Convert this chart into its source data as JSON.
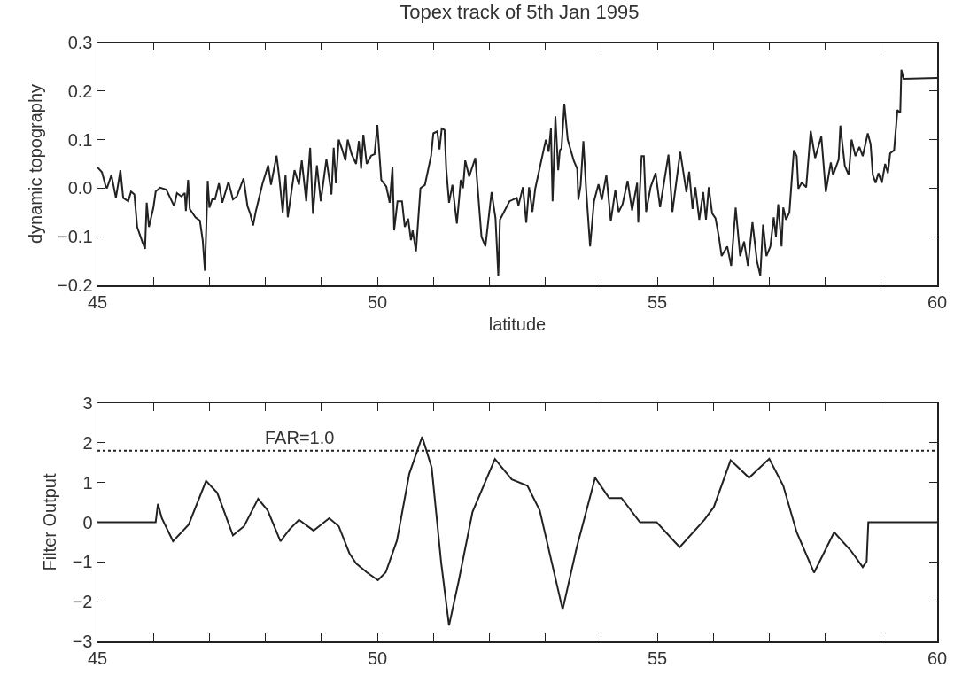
{
  "chart_data": [
    {
      "type": "line",
      "title": "Topex track of 5th Jan 1995",
      "xlabel": "latitude",
      "ylabel": "dynamic topography",
      "grid": false,
      "xlim": [
        45,
        60
      ],
      "xticks": [
        45,
        {
          "value": 46,
          "label": null
        },
        {
          "value": 47,
          "label": null
        },
        {
          "value": 48,
          "label": null
        },
        {
          "value": 49,
          "label": null
        },
        50,
        {
          "value": 51,
          "label": null
        },
        {
          "value": 52,
          "label": null
        },
        {
          "value": 53,
          "label": null
        },
        {
          "value": 54,
          "label": null
        },
        55,
        {
          "value": 56,
          "label": null
        },
        {
          "value": 57,
          "label": null
        },
        {
          "value": 58,
          "label": null
        },
        {
          "value": 59,
          "label": null
        },
        60
      ],
      "ylim": [
        -0.2,
        0.3
      ],
      "yticks": [
        {
          "value": -0.2,
          "label": "−0.2"
        },
        {
          "value": -0.1,
          "label": "−0.1"
        },
        {
          "value": 0,
          "label": "0.0"
        },
        0.1,
        0.2,
        0.3
      ],
      "series": [
        {
          "color": "#222222",
          "x": [
            45,
            45.08,
            45.15,
            45.17,
            45.25,
            45.33,
            45.41,
            45.46,
            45.55,
            45.6,
            45.66,
            45.71,
            45.8,
            45.85,
            45.88,
            45.92,
            46.0,
            46.04,
            46.12,
            46.23,
            46.37,
            46.42,
            46.5,
            46.56,
            46.58,
            46.62,
            46.65,
            46.75,
            46.83,
            46.88,
            46.92,
            46.97,
            47.0,
            47.05,
            47.1,
            47.17,
            47.23,
            47.34,
            47.42,
            47.49,
            47.61,
            47.68,
            47.73,
            47.78,
            47.83,
            47.95,
            48.05,
            48.1,
            48.2,
            48.25,
            48.31,
            48.36,
            48.4,
            48.52,
            48.6,
            48.65,
            48.73,
            48.8,
            48.85,
            48.92,
            48.99,
            49.09,
            49.18,
            49.22,
            49.26,
            49.31,
            49.37,
            49.43,
            49.47,
            49.54,
            49.62,
            49.67,
            49.71,
            49.75,
            49.81,
            49.89,
            49.95,
            50.0,
            50.07,
            50.16,
            50.22,
            50.27,
            50.3,
            50.36,
            50.44,
            50.49,
            50.55,
            50.6,
            50.63,
            50.69,
            50.77,
            50.85,
            50.96,
            51.0,
            51.07,
            51.11,
            51.15,
            51.2,
            51.23,
            51.28,
            51.34,
            51.42,
            51.49,
            51.53,
            51.57,
            51.64,
            51.75,
            51.86,
            51.93,
            52.04,
            52.11,
            52.16,
            52.19,
            52.36,
            52.49,
            52.52,
            52.6,
            52.66,
            52.71,
            52.77,
            52.82,
            53.01,
            53.06,
            53.1,
            53.13,
            53.18,
            53.23,
            53.26,
            53.29,
            53.34,
            53.4,
            53.51,
            53.57,
            53.59,
            53.63,
            53.68,
            53.73,
            53.8,
            53.87,
            53.95,
            54.01,
            54.09,
            54.17,
            54.25,
            54.31,
            54.38,
            54.47,
            54.55,
            54.64,
            54.66,
            54.72,
            54.76,
            54.8,
            54.88,
            54.97,
            55.05,
            55.2,
            55.27,
            55.41,
            55.52,
            55.57,
            55.63,
            55.68,
            55.75,
            55.82,
            55.87,
            55.92,
            55.98,
            56.04,
            56.1,
            56.15,
            56.25,
            56.32,
            56.4,
            56.48,
            56.55,
            56.62,
            56.7,
            56.78,
            56.84,
            56.89,
            56.95,
            57.02,
            57.08,
            57.12,
            57.16,
            57.22,
            57.25,
            57.3,
            57.36,
            57.44,
            57.49,
            57.52,
            57.58,
            57.66,
            57.74,
            57.82,
            57.93,
            58.01,
            58.1,
            58.14,
            58.24,
            58.27,
            58.35,
            58.42,
            58.47,
            58.54,
            58.61,
            58.67,
            58.76,
            58.81,
            58.85,
            58.9,
            58.95,
            59.01,
            59.07,
            59.12,
            59.16,
            59.23,
            59.29,
            59.34,
            59.36,
            59.4,
            60
          ],
          "values": [
            0.043,
            0.033,
            0.003,
            0,
            0.027,
            -0.02,
            0.037,
            -0.02,
            -0.027,
            -0.007,
            -0.013,
            -0.08,
            -0.11,
            -0.125,
            -0.03,
            -0.08,
            -0.04,
            -0.007,
            0.001,
            -0.003,
            -0.037,
            -0.01,
            -0.017,
            -0.01,
            -0.047,
            0.017,
            -0.043,
            -0.06,
            -0.067,
            -0.107,
            -0.17,
            0.015,
            -0.04,
            -0.023,
            -0.023,
            0.01,
            -0.03,
            0.013,
            -0.023,
            -0.017,
            0.02,
            -0.037,
            -0.053,
            -0.077,
            -0.047,
            0.01,
            0.047,
            0.007,
            0.067,
            0.02,
            -0.05,
            0.027,
            -0.06,
            0.037,
            0.007,
            0.057,
            -0.027,
            0.083,
            -0.053,
            0.047,
            -0.027,
            0.06,
            -0.013,
            0.083,
            0.01,
            0.1,
            0.08,
            0.057,
            0.1,
            0.07,
            0.05,
            0.097,
            0.04,
            0.11,
            0.05,
            0.067,
            0.07,
            0.13,
            0.017,
            0.003,
            -0.03,
            0.043,
            -0.087,
            -0.027,
            -0.027,
            -0.08,
            -0.063,
            -0.107,
            -0.087,
            -0.13,
            0,
            0.007,
            0.067,
            0.113,
            0.117,
            0.08,
            0.123,
            0.12,
            0.04,
            -0.03,
            0.007,
            -0.073,
            0.017,
            0,
            0.057,
            0.024,
            0.062,
            -0.1,
            -0.12,
            -0.008,
            -0.062,
            -0.18,
            -0.065,
            -0.027,
            -0.02,
            -0.036,
            0.002,
            -0.071,
            0.002,
            -0.049,
            -0.001,
            0.1,
            0.075,
            0.123,
            -0.027,
            0.148,
            0.037,
            0.078,
            0.082,
            0.174,
            0.1,
            0.056,
            0.04,
            -0.024,
            0.005,
            0.097,
            -0.004,
            -0.12,
            -0.027,
            0.008,
            -0.024,
            0.027,
            -0.068,
            -0.004,
            -0.049,
            -0.033,
            0.015,
            -0.046,
            0.011,
            -0.071,
            0.066,
            0.066,
            -0.049,
            0.002,
            0.031,
            -0.039,
            0.069,
            -0.049,
            0.075,
            -0.008,
            0.034,
            -0.043,
            0.002,
            -0.065,
            -0.008,
            -0.065,
            0.002,
            -0.052,
            -0.062,
            -0.1,
            -0.14,
            -0.12,
            -0.16,
            -0.04,
            -0.14,
            -0.11,
            -0.16,
            -0.07,
            -0.15,
            -0.18,
            -0.075,
            -0.14,
            -0.12,
            -0.06,
            -0.1,
            -0.033,
            -0.12,
            -0.04,
            -0.065,
            -0.05,
            0.078,
            0.066,
            -0.001,
            0.011,
            0.002,
            0.118,
            0.062,
            0.107,
            -0.008,
            0.053,
            0.027,
            0.059,
            0.129,
            0.046,
            0.027,
            0.1,
            0.066,
            0.085,
            0.066,
            0.113,
            0.091,
            0.027,
            0.011,
            0.031,
            0.011,
            0.05,
            0.031,
            0.072,
            0.078,
            0.161,
            0.155,
            0.244,
            0.225,
            0.227
          ]
        }
      ]
    },
    {
      "type": "line",
      "ylabel": "Filter Output",
      "grid": false,
      "xlim": [
        45,
        60
      ],
      "xticks": [
        45,
        {
          "value": 46,
          "label": null
        },
        {
          "value": 47,
          "label": null
        },
        {
          "value": 48,
          "label": null
        },
        {
          "value": 49,
          "label": null
        },
        50,
        {
          "value": 51,
          "label": null
        },
        {
          "value": 52,
          "label": null
        },
        {
          "value": 53,
          "label": null
        },
        {
          "value": 54,
          "label": null
        },
        55,
        {
          "value": 56,
          "label": null
        },
        {
          "value": 57,
          "label": null
        },
        {
          "value": 58,
          "label": null
        },
        {
          "value": 59,
          "label": null
        },
        60
      ],
      "ylim": [
        -3,
        3
      ],
      "yticks": [
        {
          "value": -3,
          "label": "−3"
        },
        {
          "value": -2,
          "label": "−2"
        },
        {
          "value": -1,
          "label": "−1"
        },
        0,
        1,
        2,
        3
      ],
      "ref_lines": [
        {
          "axis": "y",
          "value": 1.8,
          "color": "#222222",
          "line_style": "dotted"
        }
      ],
      "annotations": [
        {
          "text": "FAR=1.0",
          "x": 48.6,
          "y": 1.8
        }
      ],
      "series": [
        {
          "color": "#222222",
          "x": [
            45,
            46.04,
            46.08,
            46.15,
            46.35,
            46.63,
            46.94,
            47.14,
            47.42,
            47.62,
            47.87,
            48.04,
            48.27,
            48.43,
            48.6,
            48.86,
            49.14,
            49.31,
            49.5,
            49.62,
            49.81,
            50.01,
            50.15,
            50.35,
            50.57,
            50.8,
            50.97,
            51.14,
            51.28,
            51.45,
            51.7,
            52.1,
            52.4,
            52.68,
            52.9,
            53.31,
            53.56,
            53.89,
            54.14,
            54.36,
            54.69,
            54.99,
            55.4,
            55.84,
            56.01,
            56.31,
            56.64,
            57.0,
            57.25,
            57.49,
            57.8,
            58.16,
            58.46,
            58.67,
            58.74,
            58.77,
            60
          ],
          "values": [
            0,
            0,
            0.46,
            0.1,
            -0.48,
            -0.06,
            1.04,
            0.74,
            -0.33,
            -0.1,
            0.59,
            0.3,
            -0.48,
            -0.18,
            0.06,
            -0.21,
            0.1,
            -0.1,
            -0.78,
            -1.04,
            -1.26,
            -1.46,
            -1.26,
            -0.46,
            1.22,
            2.15,
            1.38,
            -1.02,
            -2.6,
            -1.5,
            0.26,
            1.59,
            1.08,
            0.92,
            0.3,
            -2.2,
            -0.64,
            1.12,
            0.61,
            0.61,
            0,
            0,
            -0.63,
            0.06,
            0.38,
            1.56,
            1.12,
            1.6,
            0.92,
            -0.25,
            -1.27,
            -0.25,
            -0.72,
            -1.13,
            -0.99,
            0,
            0
          ]
        }
      ]
    }
  ]
}
